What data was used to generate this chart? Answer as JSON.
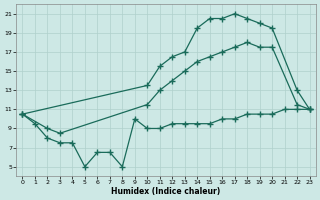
{
  "xlabel": "Humidex (Indice chaleur)",
  "bg_color": "#cde8e5",
  "grid_color": "#b0d0cc",
  "line_color": "#1a6b5a",
  "xlim": [
    -0.5,
    23.5
  ],
  "ylim": [
    4,
    22
  ],
  "xticks": [
    0,
    1,
    2,
    3,
    4,
    5,
    6,
    7,
    8,
    9,
    10,
    11,
    12,
    13,
    14,
    15,
    16,
    17,
    18,
    19,
    20,
    21,
    22,
    23
  ],
  "yticks": [
    5,
    7,
    9,
    11,
    13,
    15,
    17,
    19,
    21
  ],
  "line_top_x": [
    0,
    10,
    11,
    12,
    13,
    14,
    15,
    16,
    17,
    18,
    19,
    20,
    22,
    23
  ],
  "line_top_y": [
    10.5,
    13.5,
    15.5,
    16.5,
    17.0,
    19.5,
    20.5,
    20.5,
    21.0,
    20.5,
    20.0,
    19.5,
    13.0,
    11.0
  ],
  "line_mid_x": [
    0,
    2,
    3,
    10,
    11,
    12,
    13,
    14,
    15,
    16,
    17,
    18,
    19,
    20,
    22,
    23
  ],
  "line_mid_y": [
    10.5,
    9.0,
    8.5,
    11.5,
    13.0,
    14.0,
    15.0,
    16.0,
    16.5,
    17.0,
    17.5,
    18.0,
    17.5,
    17.5,
    11.5,
    11.0
  ],
  "line_bot_x": [
    0,
    1,
    2,
    3,
    4,
    5,
    6,
    7,
    8,
    9,
    10,
    11,
    12,
    13,
    14,
    15,
    16,
    17,
    18,
    19,
    20,
    21,
    22,
    23
  ],
  "line_bot_y": [
    10.5,
    9.5,
    8.0,
    7.5,
    7.5,
    5.0,
    6.5,
    6.5,
    5.0,
    10.0,
    9.0,
    9.0,
    9.5,
    9.5,
    9.5,
    9.5,
    10.0,
    10.0,
    10.5,
    10.5,
    10.5,
    11.0,
    11.0,
    11.0
  ]
}
